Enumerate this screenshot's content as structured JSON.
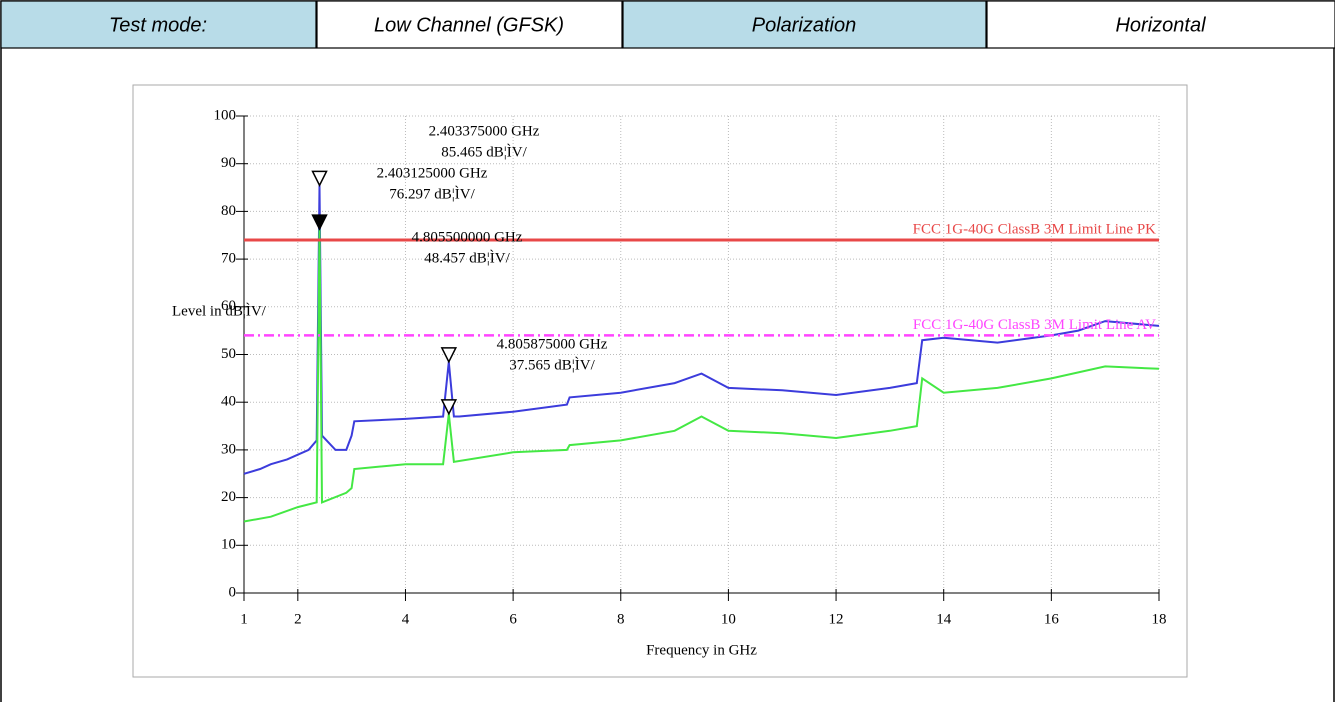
{
  "header": {
    "cells": [
      {
        "text": "Test mode:",
        "shaded": true
      },
      {
        "text": "Low Channel (GFSK)",
        "shaded": false
      },
      {
        "text": "Polarization",
        "shaded": true
      },
      {
        "text": "Horizontal",
        "shaded": false
      }
    ]
  },
  "chart_data": {
    "type": "line",
    "xlabel": "Frequency in GHz",
    "ylabel": "Level in dB¦ÌV/",
    "xlim": [
      1,
      18
    ],
    "xticks": [
      1,
      2,
      4,
      6,
      8,
      10,
      12,
      14,
      16,
      18
    ],
    "ylim": [
      0,
      100
    ],
    "yticks": [
      0,
      10,
      20,
      30,
      40,
      50,
      60,
      70,
      80,
      90,
      100
    ],
    "grid": true,
    "series": [
      {
        "color": "#3c3cdc",
        "x": [
          1,
          1.3,
          1.5,
          1.8,
          2,
          2.2,
          2.35,
          2.403375,
          2.45,
          2.7,
          2.9,
          3,
          3.05,
          4,
          4.7,
          4.8055,
          4.9,
          5,
          6,
          7,
          7.05,
          8,
          9,
          9.5,
          10,
          11,
          12,
          13,
          13.5,
          13.6,
          14,
          15,
          16,
          16.5,
          17,
          18
        ],
        "values": [
          25,
          26,
          27,
          28,
          29,
          30,
          32,
          85.465,
          33,
          30,
          30,
          33,
          36,
          36.5,
          37,
          48.457,
          37,
          37,
          38,
          39.5,
          41,
          42,
          44,
          46,
          43,
          42.5,
          41.5,
          43,
          44,
          53,
          53.5,
          52.5,
          54,
          55,
          57,
          56
        ]
      },
      {
        "color": "#44e844",
        "x": [
          1,
          1.5,
          2,
          2.35,
          2.403125,
          2.45,
          2.9,
          3,
          3.05,
          4,
          4.7,
          4.805875,
          4.9,
          6,
          7,
          7.05,
          8,
          9,
          9.5,
          10,
          11,
          12,
          13,
          13.5,
          13.6,
          14,
          15,
          16,
          17,
          18
        ],
        "values": [
          15,
          16,
          18,
          19,
          76.297,
          19,
          21,
          22,
          26,
          27,
          27,
          37.565,
          27.5,
          29.5,
          30,
          31,
          32,
          34,
          37,
          34,
          33.5,
          32.5,
          34,
          35,
          45,
          42,
          43,
          45,
          47.5,
          47
        ]
      }
    ],
    "limit_lines": [
      {
        "name": "FCC 1G-40G ClassB 3M Limit Line PK",
        "value": 74,
        "color": "#e84848",
        "style": "solid"
      },
      {
        "name": "FCC 1G-40G ClassB 3M Limit Line AV",
        "value": 54,
        "color": "#ff44ff",
        "style": "dashdot"
      }
    ],
    "markers": [
      {
        "x": 2.403375,
        "y": 85.465,
        "lines": [
          "2.403375000 GHz",
          "85.465 dB¦ÌV/"
        ],
        "filled": false
      },
      {
        "x": 2.403125,
        "y": 76.297,
        "lines": [
          "2.403125000 GHz",
          "76.297 dB¦ÌV/"
        ],
        "filled": true
      },
      {
        "x": 4.8055,
        "y": 48.457,
        "lines": [
          "4.805500000 GHz",
          "48.457 dB¦ÌV/"
        ],
        "filled": false
      },
      {
        "x": 4.805875,
        "y": 37.565,
        "lines": [
          "4.805875000 GHz",
          "37.565 dB¦ÌV/"
        ],
        "filled": false
      }
    ]
  }
}
